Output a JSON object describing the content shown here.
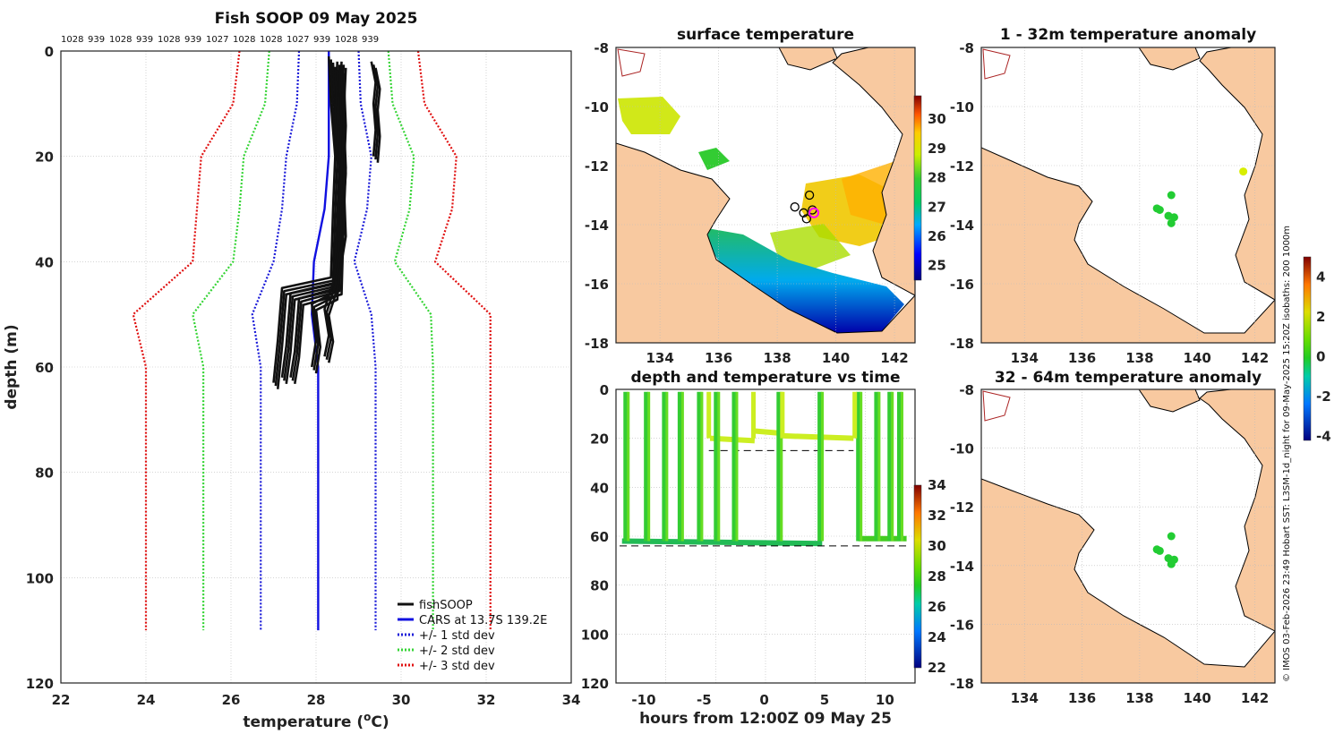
{
  "colors": {
    "land": "#f8c9a0",
    "fish": "#111111",
    "cars": "#1010e0",
    "sd1": "#1a1ad8",
    "sd2": "#35d435",
    "sd3": "#e01010"
  },
  "chart_data": [
    {
      "id": "profile",
      "type": "line",
      "title": "Fish SOOP 09 May 2025",
      "xlabel": "temperature (",
      "xlabel_sup": "o",
      "xlabel_end": "C)",
      "ylabel": "depth (m)",
      "xlim": [
        22,
        34
      ],
      "ylim": [
        120,
        0
      ],
      "xticks": [
        "22",
        "24",
        "26",
        "28",
        "30",
        "32",
        "34"
      ],
      "yticks": [
        "0",
        "20",
        "40",
        "60",
        "80",
        "100",
        "120"
      ],
      "top_labels": [
        "1028",
        "939",
        "1028",
        "939",
        "1028",
        "939",
        "1027",
        "1028",
        "1028",
        "1027",
        "939",
        "1028",
        "939"
      ],
      "legend": [
        "fishSOOP",
        "CARS at 13.7S 139.2E",
        "+/- 1 std dev",
        "+/- 2 std dev",
        "+/- 3 std dev"
      ],
      "depth": [
        0,
        10,
        20,
        30,
        40,
        50,
        60,
        110
      ],
      "cars_mean": [
        28.3,
        28.3,
        28.3,
        28.2,
        27.95,
        27.9,
        28.05,
        28.05
      ],
      "std": [
        0.7,
        0.75,
        1.0,
        1.0,
        0.95,
        1.4,
        1.35,
        1.35
      ],
      "fish_profiles": [
        {
          "t": [
            28.3,
            28.35,
            28.45,
            28.4,
            28.35,
            27.2,
            27.1,
            27.0
          ],
          "z": [
            1,
            10,
            20,
            30,
            43,
            45,
            55,
            63
          ]
        },
        {
          "t": [
            28.5,
            28.45,
            28.55,
            28.5,
            28.45,
            27.4,
            27.3,
            27.2
          ],
          "z": [
            2,
            12,
            22,
            32,
            44,
            46,
            56,
            62
          ]
        },
        {
          "t": [
            28.6,
            28.55,
            28.6,
            28.55,
            28.5,
            27.6,
            27.5,
            27.4
          ],
          "z": [
            2,
            11,
            21,
            31,
            45,
            47,
            57,
            62
          ]
        },
        {
          "t": [
            28.45,
            28.5,
            28.6,
            28.5,
            28.4,
            27.9,
            28.0,
            27.9
          ],
          "z": [
            3,
            12,
            22,
            33,
            46,
            48,
            55,
            60
          ]
        },
        {
          "t": [
            28.55,
            28.6,
            28.55,
            28.6,
            28.4,
            28.2,
            28.3,
            28.2
          ],
          "z": [
            3,
            13,
            23,
            34,
            44,
            49,
            54,
            58
          ]
        },
        {
          "t": [
            29.3,
            29.4,
            29.35,
            29.4,
            29.35
          ],
          "z": [
            2,
            6,
            10,
            15,
            20
          ]
        }
      ]
    },
    {
      "id": "sst",
      "type": "heatmap",
      "title": "surface temperature",
      "xlim": [
        132.5,
        142.7
      ],
      "ylim": [
        -18,
        -8
      ],
      "xticks": [
        "134",
        "136",
        "138",
        "140",
        "142"
      ],
      "yticks": [
        "-8",
        "-10",
        "-12",
        "-14",
        "-16",
        "-18"
      ],
      "colorbar": {
        "range": [
          24.5,
          30.8
        ],
        "ticks": [
          "25",
          "26",
          "27",
          "28",
          "29",
          "30"
        ]
      },
      "profile_locations": [
        [
          138.6,
          -13.4
        ],
        [
          138.9,
          -13.6
        ],
        [
          139.2,
          -13.5
        ],
        [
          139.0,
          -13.8
        ],
        [
          139.1,
          -13.0
        ]
      ]
    },
    {
      "id": "timeseries",
      "type": "scatter",
      "title": "depth and temperature vs time",
      "xlabel": "hours from 12:00Z 09 May 25",
      "xlim": [
        -12.3,
        12.5
      ],
      "ylim": [
        120,
        0
      ],
      "xticks": [
        "-10",
        "-5",
        "0",
        "5",
        "10"
      ],
      "yticks": [
        "0",
        "20",
        "40",
        "60",
        "80",
        "100",
        "120"
      ],
      "colorbar": {
        "range": [
          22,
          34
        ],
        "ticks": [
          "22",
          "24",
          "26",
          "28",
          "30",
          "32",
          "34"
        ]
      },
      "dives": [
        -11.5,
        -9.8,
        -8.3,
        -7.0,
        -5.4,
        -4.0,
        -2.5,
        1.2,
        4.6,
        7.8,
        9.3,
        10.4,
        11.2
      ],
      "shelf_segments": [
        [
          -4.5,
          -0.8,
          20
        ],
        [
          1.6,
          7.4,
          19
        ],
        [
          -0.8,
          1.6,
          17
        ]
      ]
    },
    {
      "id": "anom1",
      "type": "scatter",
      "title": "1 - 32m temperature anomaly",
      "xlim": [
        132.5,
        142.7
      ],
      "ylim": [
        -18,
        -8
      ],
      "xticks": [
        "134",
        "136",
        "138",
        "140",
        "142"
      ],
      "yticks": [
        "-8",
        "-10",
        "-12",
        "-14",
        "-16",
        "-18"
      ],
      "points": [
        [
          138.6,
          -13.45
        ],
        [
          138.7,
          -13.5
        ],
        [
          139.1,
          -13.0
        ],
        [
          139.0,
          -13.7
        ],
        [
          139.2,
          -13.75
        ],
        [
          139.1,
          -13.95
        ],
        [
          141.6,
          -12.2
        ]
      ],
      "anomaly": [
        0.3,
        0.3,
        0.2,
        0.4,
        0.3,
        0.2,
        2.3
      ]
    },
    {
      "id": "anom2",
      "type": "scatter",
      "title": "32 - 64m temperature anomaly",
      "xlim": [
        132.5,
        142.7
      ],
      "ylim": [
        -18,
        -8
      ],
      "xticks": [
        "134",
        "136",
        "138",
        "140",
        "142"
      ],
      "yticks": [
        "-8",
        "-10",
        "-12",
        "-14",
        "-16",
        "-18"
      ],
      "points": [
        [
          138.6,
          -13.45
        ],
        [
          138.7,
          -13.5
        ],
        [
          139.1,
          -13.0
        ],
        [
          139.0,
          -13.75
        ],
        [
          139.2,
          -13.8
        ],
        [
          139.1,
          -13.95
        ]
      ],
      "anomaly": [
        0.3,
        0.3,
        0.2,
        0.4,
        0.3,
        0.2
      ],
      "colorbar": {
        "range": [
          -4.2,
          5.0
        ],
        "ticks": [
          "4",
          "2",
          "0",
          "-2",
          "-4"
        ]
      }
    }
  ],
  "side_caption": "© IMOS 03-Feb-2026 23:49 Hobart SST: L3SM-1d_night for 09-May-2025 15:20Z isobaths: 200  1000m"
}
